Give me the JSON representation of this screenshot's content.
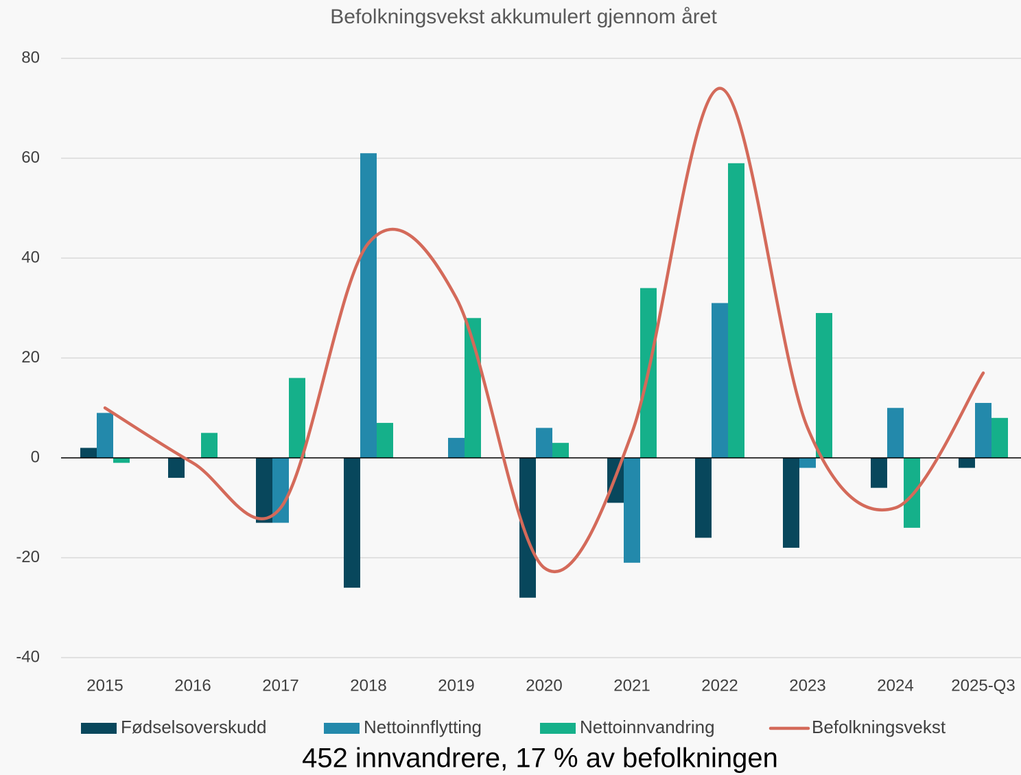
{
  "chart_data": {
    "type": "bar",
    "title": "Befolkningsvekst akkumulert gjennom året",
    "caption": "452 innvandrere, 17 % av befolkningen",
    "categories": [
      "2015",
      "2016",
      "2017",
      "2018",
      "2019",
      "2020",
      "2021",
      "2022",
      "2023",
      "2024",
      "2025-Q3"
    ],
    "series": [
      {
        "name": "Fødselsoverskudd",
        "color": "#08475c",
        "type": "bar",
        "values": [
          2,
          -4,
          -13,
          -26,
          0,
          -28,
          -9,
          -16,
          -18,
          -6,
          -2
        ]
      },
      {
        "name": "Nettoinnflytting",
        "color": "#2389ab",
        "type": "bar",
        "values": [
          9,
          0,
          -13,
          61,
          4,
          6,
          -21,
          31,
          -2,
          10,
          11
        ]
      },
      {
        "name": "Nettoinnvandring",
        "color": "#15b08a",
        "type": "bar",
        "values": [
          -1,
          5,
          16,
          7,
          28,
          3,
          34,
          59,
          29,
          -14,
          8
        ]
      },
      {
        "name": "Befolkningsvekst",
        "color": "#d46a5a",
        "type": "line",
        "smooth": true,
        "values": [
          10,
          -1,
          -10,
          43,
          32,
          -22,
          5,
          74,
          6,
          -10,
          17
        ]
      }
    ],
    "ylim": [
      -40,
      80
    ],
    "yticks": [
      -40,
      -20,
      0,
      20,
      40,
      60,
      80
    ],
    "grid": true,
    "legend": "bottom"
  }
}
